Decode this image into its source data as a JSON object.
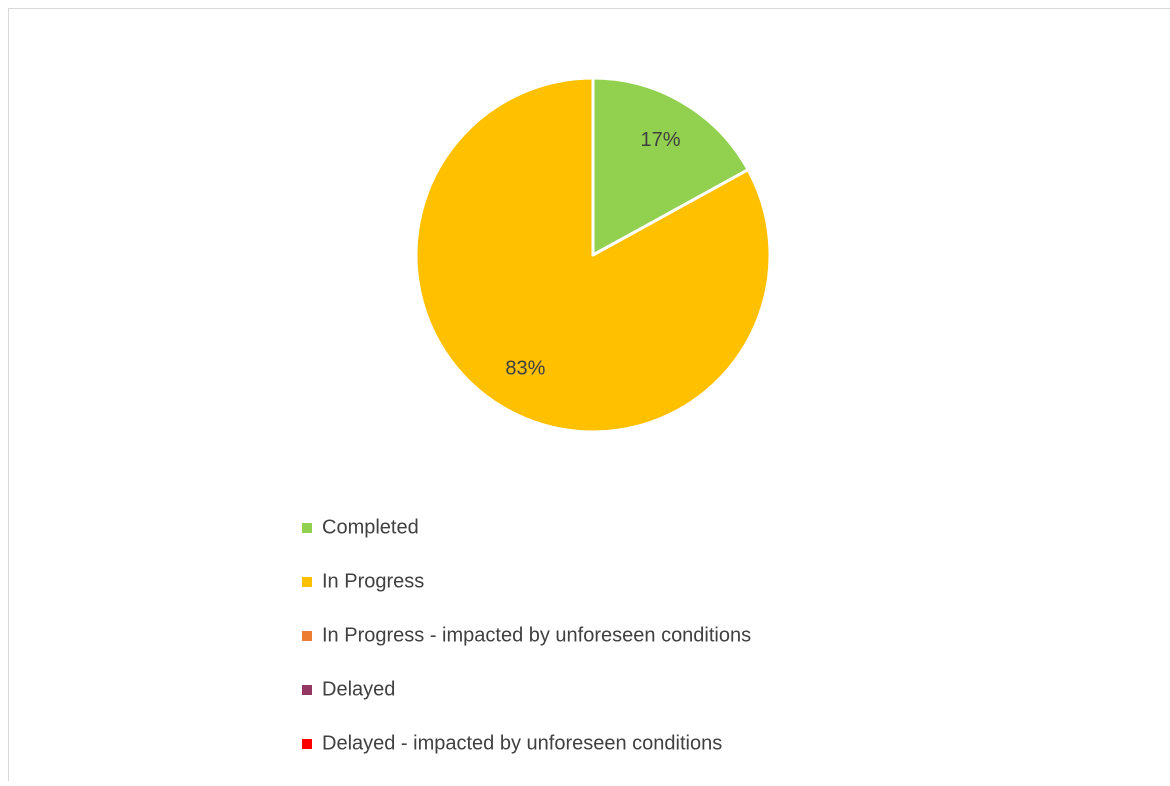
{
  "chart_data": {
    "type": "pie",
    "categories": [
      "Completed",
      "In Progress",
      "In Progress -  impacted by unforeseen conditions",
      "Delayed",
      "Delayed -  impacted by unforeseen conditions"
    ],
    "values": [
      17,
      83,
      0,
      0,
      0
    ],
    "value_labels": [
      "17%",
      "83%",
      null,
      null,
      null
    ],
    "colors": [
      "#92d050",
      "#ffc000",
      "#ed7d31",
      "#953763",
      "#ff0000"
    ],
    "legend": "bottom"
  }
}
